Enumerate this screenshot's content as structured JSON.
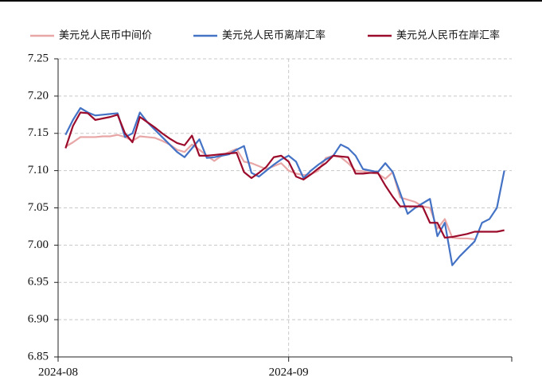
{
  "chart_data": {
    "type": "line",
    "series": [
      {
        "name": "美元兑人民币中间价",
        "color": "#e8a6a6",
        "values": [
          7.132,
          7.138,
          7.145,
          7.145,
          7.145,
          7.146,
          7.146,
          7.148,
          7.145,
          7.14,
          7.146,
          7.145,
          7.144,
          7.14,
          7.135,
          7.128,
          7.125,
          7.135,
          7.128,
          7.12,
          7.113,
          7.12,
          7.125,
          7.129,
          7.112,
          7.11,
          7.106,
          7.102,
          7.106,
          7.11,
          7.1,
          7.096,
          7.094,
          7.095,
          7.1,
          7.117,
          7.12,
          7.118,
          7.11,
          7.1,
          7.099,
          7.097,
          7.096,
          7.089,
          7.098,
          7.064,
          7.061,
          7.058,
          7.052,
          7.05,
          7.022,
          7.035,
          7.01,
          7.009,
          7.009,
          7.008,
          null,
          null,
          null,
          null
        ]
      },
      {
        "name": "美元兑人民币离岸汇率",
        "color": "#4472c4",
        "values": [
          7.148,
          7.168,
          7.184,
          7.178,
          7.174,
          7.175,
          7.176,
          7.177,
          7.145,
          7.15,
          7.178,
          7.165,
          7.155,
          7.145,
          7.135,
          7.125,
          7.118,
          7.13,
          7.142,
          7.117,
          7.118,
          7.12,
          7.122,
          7.128,
          7.133,
          7.097,
          7.092,
          7.1,
          7.108,
          7.115,
          7.12,
          7.112,
          7.09,
          7.1,
          7.108,
          7.115,
          7.12,
          7.135,
          7.13,
          7.12,
          7.102,
          7.1,
          7.098,
          7.11,
          7.098,
          7.07,
          7.042,
          7.05,
          7.056,
          7.062,
          7.012,
          7.03,
          6.973,
          6.985,
          6.995,
          7.005,
          7.03,
          7.035,
          7.05,
          7.1
        ]
      },
      {
        "name": "美元兑人民币在岸汇率",
        "color": "#9b0b2b",
        "values": [
          7.13,
          7.16,
          7.178,
          7.177,
          7.168,
          7.17,
          7.172,
          7.175,
          7.15,
          7.138,
          7.172,
          7.165,
          7.158,
          7.15,
          7.143,
          7.137,
          7.134,
          7.147,
          7.12,
          7.12,
          7.121,
          7.122,
          7.123,
          7.124,
          7.098,
          7.09,
          7.097,
          7.105,
          7.118,
          7.12,
          7.112,
          7.092,
          7.088,
          7.095,
          7.103,
          7.11,
          7.12,
          7.119,
          7.118,
          7.096,
          7.096,
          7.097,
          7.097,
          7.08,
          7.065,
          7.052,
          7.052,
          7.052,
          7.052,
          7.03,
          7.03,
          7.01,
          7.011,
          7.013,
          7.015,
          7.018,
          7.018,
          7.018,
          7.018,
          7.02
        ]
      }
    ],
    "x": [
      1,
      2,
      3,
      4,
      5,
      6,
      7,
      8,
      9,
      10,
      11,
      12,
      13,
      14,
      15,
      16,
      17,
      18,
      19,
      20,
      21,
      22,
      23,
      24,
      25,
      26,
      27,
      28,
      29,
      30,
      31,
      32,
      33,
      34,
      35,
      36,
      37,
      38,
      39,
      40,
      41,
      42,
      43,
      44,
      45,
      46,
      47,
      48,
      49,
      50,
      51,
      52,
      53,
      54,
      55,
      56,
      57,
      58,
      59,
      60
    ],
    "xlim": [
      0,
      61
    ],
    "xticks": [
      {
        "value": 0,
        "label": "2024-08"
      },
      {
        "value": 31,
        "label": "2024-09"
      }
    ],
    "ylim": [
      6.85,
      7.25
    ],
    "yticks": [
      6.85,
      {
        "value": 6.9,
        "label": "6.90"
      },
      6.95,
      {
        "value": 7.0,
        "label": "7.00"
      },
      7.05,
      {
        "value": 7.1,
        "label": "7.10"
      },
      7.15,
      {
        "value": 7.2,
        "label": "7.20"
      },
      7.25
    ],
    "grid": true,
    "legend": "top"
  }
}
